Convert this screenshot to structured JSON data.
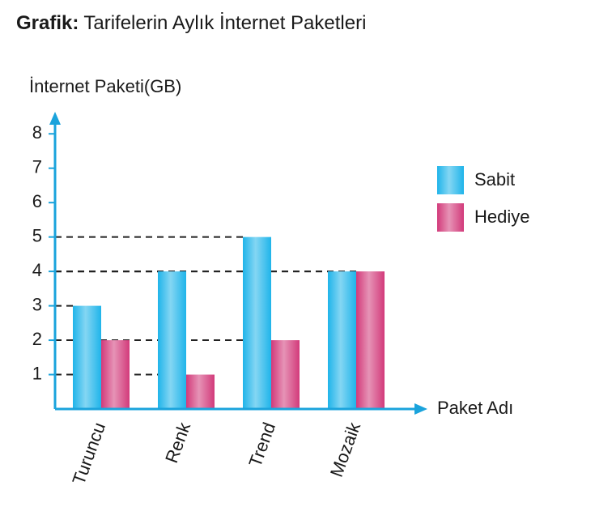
{
  "chart_data": {
    "type": "bar",
    "title_label": "Grafik:",
    "title": "Tarifelerin Aylık İnternet Paketleri",
    "y_label": "İnternet Paketi(GB)",
    "x_label": "Paket Adı",
    "categories": [
      "Turuncu",
      "Renk",
      "Trend",
      "Mozaik"
    ],
    "series": [
      {
        "name": "Sabit",
        "color": "#1fb4ea",
        "values": [
          3,
          4,
          5,
          4
        ]
      },
      {
        "name": "Hediye",
        "color": "#d23a7a",
        "values": [
          2,
          1,
          2,
          4
        ]
      }
    ],
    "ylim": [
      0,
      8.5
    ],
    "yticks": [
      1,
      2,
      3,
      4,
      5,
      6,
      7,
      8
    ],
    "axis_color": "#1aa3dc"
  }
}
